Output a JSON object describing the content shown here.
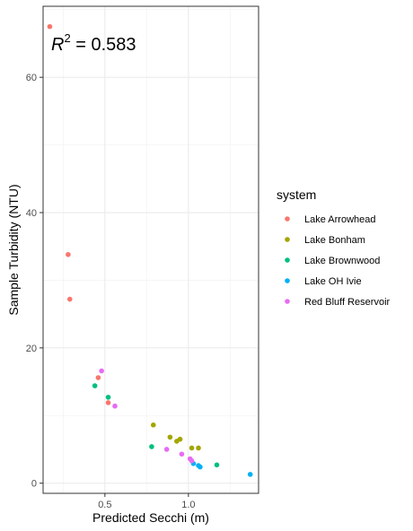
{
  "chart_data": {
    "type": "scatter",
    "xlabel": "Predicted Secchi (m)",
    "ylabel": "Sample Turbidity (NTU)",
    "xlim": [
      0.13,
      1.42
    ],
    "ylim": [
      -1.5,
      70.5
    ],
    "x_ticks": [
      0.5,
      1.0
    ],
    "x_tick_labels": [
      "0.5",
      "1.0"
    ],
    "y_ticks": [
      0,
      20,
      40,
      60
    ],
    "y_tick_labels": [
      "0",
      "20",
      "40",
      "60"
    ],
    "grid": true,
    "legend_title": "system",
    "legend_position": "right",
    "annotation": {
      "base": "R",
      "superscript": "2",
      "rest": " = 0.583",
      "position": "top-left"
    },
    "series": [
      {
        "name": "Lake Arrowhead",
        "color": "#F8766D",
        "points": [
          {
            "x": 0.17,
            "y": 67.5
          },
          {
            "x": 0.28,
            "y": 33.8
          },
          {
            "x": 0.29,
            "y": 27.2
          },
          {
            "x": 0.46,
            "y": 15.6
          },
          {
            "x": 0.52,
            "y": 11.9
          }
        ]
      },
      {
        "name": "Lake Bonham",
        "color": "#A3A500",
        "points": [
          {
            "x": 0.79,
            "y": 8.6
          },
          {
            "x": 0.89,
            "y": 6.8
          },
          {
            "x": 0.93,
            "y": 6.2
          },
          {
            "x": 0.95,
            "y": 6.5
          },
          {
            "x": 1.02,
            "y": 5.2
          },
          {
            "x": 1.06,
            "y": 5.2
          }
        ]
      },
      {
        "name": "Lake Brownwood",
        "color": "#00BF7D",
        "points": [
          {
            "x": 0.44,
            "y": 14.4
          },
          {
            "x": 0.52,
            "y": 12.7
          },
          {
            "x": 0.78,
            "y": 5.4
          },
          {
            "x": 1.17,
            "y": 2.7
          }
        ]
      },
      {
        "name": "Lake OH Ivie",
        "color": "#00B0F6",
        "points": [
          {
            "x": 1.03,
            "y": 2.9
          },
          {
            "x": 1.06,
            "y": 2.6
          },
          {
            "x": 1.07,
            "y": 2.4
          },
          {
            "x": 1.37,
            "y": 1.3
          }
        ]
      },
      {
        "name": "Red Bluff Reservoir",
        "color": "#E76BF3",
        "points": [
          {
            "x": 0.48,
            "y": 16.6
          },
          {
            "x": 0.56,
            "y": 11.4
          },
          {
            "x": 0.87,
            "y": 5.0
          },
          {
            "x": 0.96,
            "y": 4.3
          },
          {
            "x": 1.01,
            "y": 3.6
          },
          {
            "x": 1.02,
            "y": 3.3
          }
        ]
      }
    ]
  }
}
